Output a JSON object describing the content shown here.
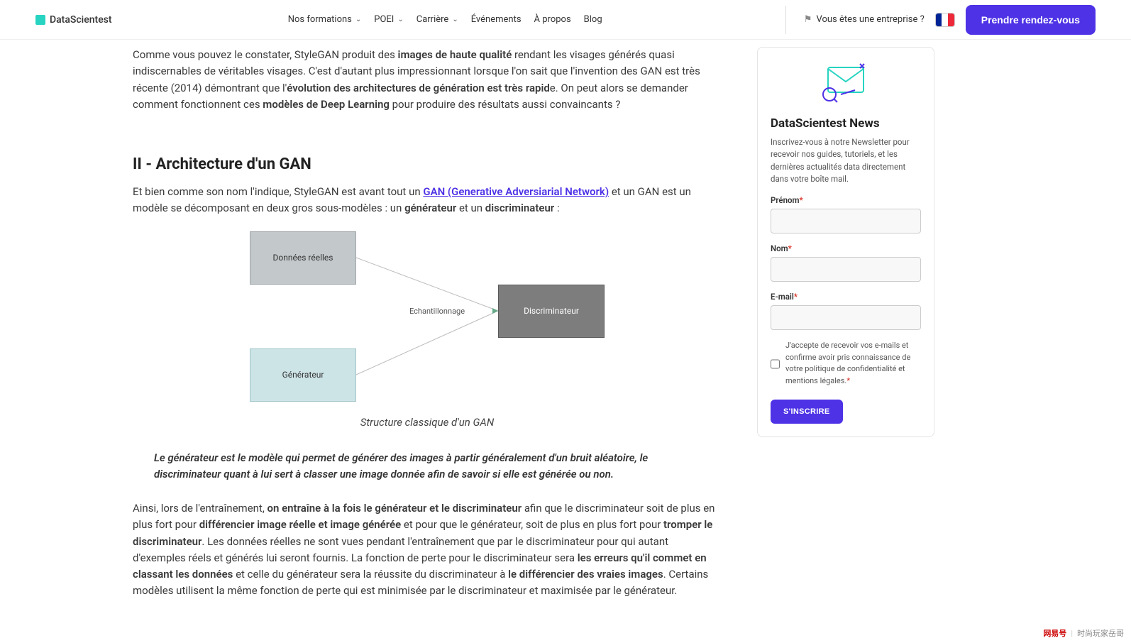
{
  "header": {
    "logo_text": "DataScientest",
    "nav": [
      {
        "label": "Nos formations",
        "dropdown": true
      },
      {
        "label": "POEI",
        "dropdown": true
      },
      {
        "label": "Carrière",
        "dropdown": true
      },
      {
        "label": "Événements",
        "dropdown": false
      },
      {
        "label": "À propos",
        "dropdown": false
      },
      {
        "label": "Blog",
        "dropdown": false
      }
    ],
    "entreprise_text": "Vous êtes une entreprise ?",
    "flag_colors": [
      "#002395",
      "#ffffff",
      "#ed2939"
    ],
    "cta": "Prendre rendez-vous"
  },
  "article": {
    "p1_a": "Comme vous pouvez le constater, StyleGAN produit des ",
    "p1_b1": "images de haute qualité",
    "p1_c": " rendant les visages générés quasi indiscernables de véritables visages. C'est d'autant plus impressionnant lorsque l'on sait que l'invention des GAN est très récente (2014) démontrant que l'",
    "p1_b2": "évolution des architectures de génération est très rapid",
    "p1_d": "e. On peut alors se demander comment fonctionnent ces ",
    "p1_b3": "modèles de Deep Learning",
    "p1_e": " pour produire des résultats aussi convaincants ?",
    "h2": "II - Architecture d'un GAN",
    "p2_a": "Et bien comme son nom l'indique, StyleGAN est avant tout un ",
    "p2_link": "GAN (Generative Adversiarial Network)",
    "p2_c": " et un GAN est un modèle se décomposant en deux gros sous-modèles : un ",
    "p2_b1": "générateur",
    "p2_d": " et un ",
    "p2_b2": "discriminateur",
    "p2_e": " :",
    "caption": "Structure classique d'un GAN",
    "quote": "Le générateur est le modèle qui permet de générer des images à partir généralement d'un bruit aléatoire, le discriminateur quant à lui sert à classer une image donnée afin de savoir si elle est générée ou non.",
    "p3_a": "Ainsi, lors de l'entraînement, ",
    "p3_b1": "on entraîne à la fois le générateur et le discriminateur",
    "p3_c": " afin que le discriminateur soit de plus en plus fort pour ",
    "p3_b2": "différencier image réelle et image générée",
    "p3_d": " et pour que le générateur, soit de plus en plus fort pour ",
    "p3_b3": "tromper le discriminateur",
    "p3_e": ". Les données réelles ne sont vues pendant l'entraînement que par le discriminateur pour qui autant d'exemples réels et générés lui seront fournis. La fonction de perte pour le discriminateur sera ",
    "p3_b4": "les erreurs qu'il commet en classant les données",
    "p3_f": " et celle du générateur sera la réussite du discriminateur à ",
    "p3_b5": "le différencier des vraies images",
    "p3_g": ". Certains modèles utilisent la même fonction de perte qui est minimisée par le discriminateur et maximisée par le générateur."
  },
  "diagram": {
    "box_real": {
      "label": "Données réelles",
      "fill": "#c3c8cb",
      "stroke": "#9ea4a8"
    },
    "box_gen": {
      "label": "Générateur",
      "fill": "#cde4e7",
      "stroke": "#a0c5ca"
    },
    "box_disc": {
      "label": "Discriminateur",
      "fill": "#7d7d7d",
      "stroke": "#5a5a5a"
    },
    "mid_label": "Echantillonnage"
  },
  "sidebar": {
    "title": "DataScientest News",
    "desc": "Inscrivez-vous à notre Newsletter pour recevoir nos guides, tutoriels, et les dernières actualités data directement dans votre boîte mail.",
    "field_prenom": "Prénom",
    "field_nom": "Nom",
    "field_email": "E-mail",
    "consent": "J'accepte de recevoir vos e-mails et confirme avoir pris connaissance de votre politique de confidentialité et mentions légales.",
    "submit": "S'INSCRIRE"
  },
  "watermark": {
    "brand": "网易号",
    "author": "时尚玩家岳哥"
  }
}
